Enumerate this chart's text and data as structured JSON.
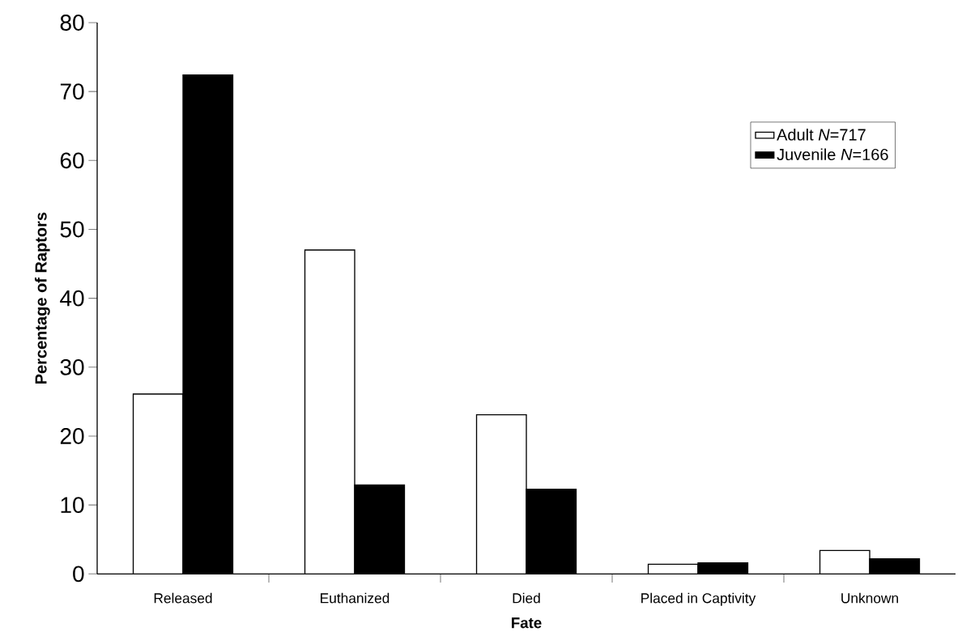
{
  "chart_data": {
    "type": "bar",
    "xlabel": "Fate",
    "ylabel": "Percentage of Raptors",
    "categories": [
      "Released",
      "Euthanized",
      "Died",
      "Placed in Captivity",
      "Unknown"
    ],
    "series": [
      {
        "name": "Adult  *N*=717",
        "color": "#ffffff",
        "values": [
          26.1,
          47.0,
          23.1,
          1.4,
          3.4
        ]
      },
      {
        "name": "Juvenile  *N*=166",
        "color": "#000000",
        "values": [
          72.4,
          12.9,
          12.3,
          1.6,
          2.2
        ]
      }
    ],
    "ylim": [
      0,
      80
    ],
    "yticks": [
      0,
      10,
      20,
      30,
      40,
      50,
      60,
      70,
      80
    ],
    "grid": false,
    "legend": "top right"
  }
}
